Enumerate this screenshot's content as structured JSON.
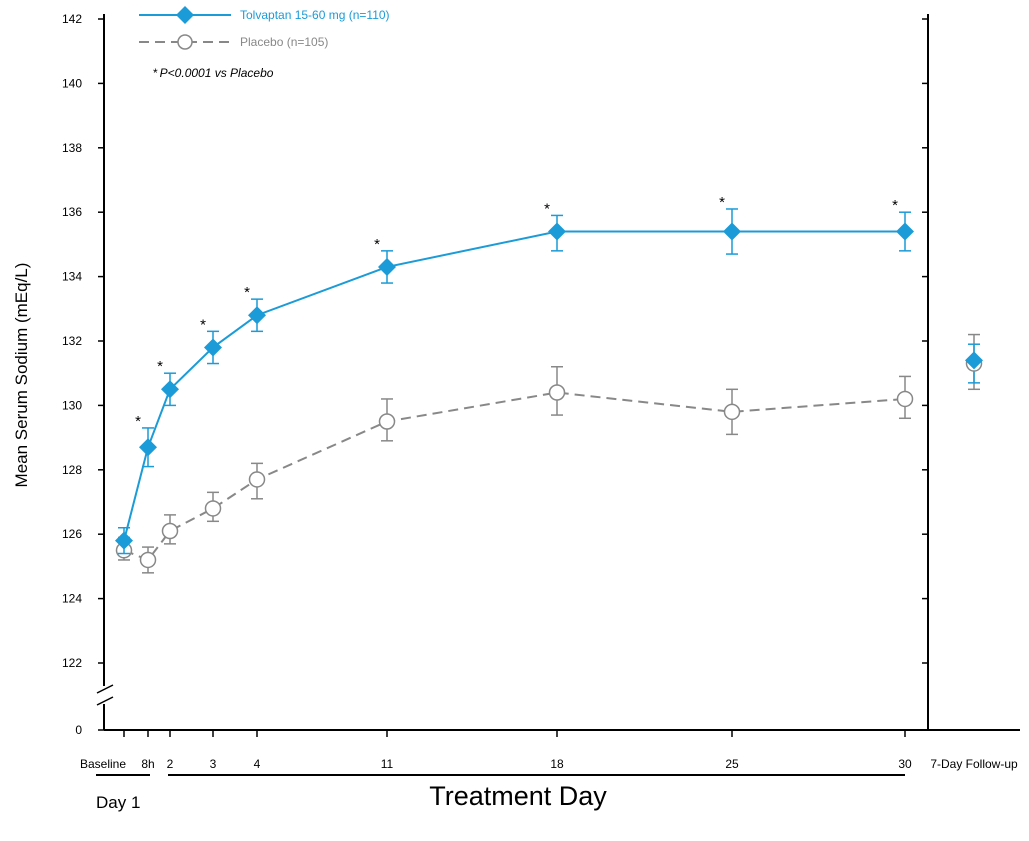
{
  "chart_data": {
    "type": "line",
    "title": "",
    "xlabel": "Treatment Day",
    "ylabel": "Mean Serum Sodium (mEq/L)",
    "day_group_label": "Day 1",
    "categories": [
      "Baseline",
      "8h",
      "2",
      "3",
      "4",
      "11",
      "18",
      "25",
      "30"
    ],
    "followup_label": "7-Day Follow-up",
    "yticks": [
      "0",
      "122",
      "124",
      "126",
      "128",
      "130",
      "132",
      "134",
      "136",
      "138",
      "140",
      "142"
    ],
    "ylim": [
      122,
      142
    ],
    "axis_break": true,
    "grid": false,
    "legend_position": "top-left",
    "series": [
      {
        "name": "Tolvaptan 15-60 mg (n=110)",
        "color": "#1b9bd7",
        "marker": "filled-diamond",
        "line": "solid",
        "values": [
          125.8,
          128.7,
          130.5,
          131.8,
          132.8,
          134.3,
          135.4,
          135.4,
          135.4
        ],
        "error_low": [
          125.4,
          128.1,
          130.0,
          131.3,
          132.3,
          133.8,
          134.8,
          134.7,
          134.8
        ],
        "error_high": [
          126.2,
          129.3,
          131.0,
          132.3,
          133.3,
          134.8,
          135.9,
          136.1,
          136.0
        ],
        "followup": {
          "value": 131.4,
          "low": 130.7,
          "high": 131.9
        }
      },
      {
        "name": "Placebo (n=105)",
        "color": "#888888",
        "marker": "open-circle",
        "line": "dashed",
        "values": [
          125.5,
          125.2,
          126.1,
          126.8,
          127.7,
          129.5,
          130.4,
          129.8,
          130.2
        ],
        "error_low": [
          125.2,
          124.8,
          125.7,
          126.4,
          127.1,
          128.9,
          129.7,
          129.1,
          129.6
        ],
        "error_high": [
          125.9,
          125.6,
          126.6,
          127.3,
          128.2,
          130.2,
          131.2,
          130.5,
          130.9
        ],
        "followup": {
          "value": 131.3,
          "low": 130.5,
          "high": 132.2
        }
      }
    ],
    "significance_marker": "*",
    "significant_points": [
      "8h",
      "2",
      "3",
      "4",
      "11",
      "18",
      "25",
      "30"
    ],
    "annotation": "P<0.0001 vs Placebo"
  }
}
